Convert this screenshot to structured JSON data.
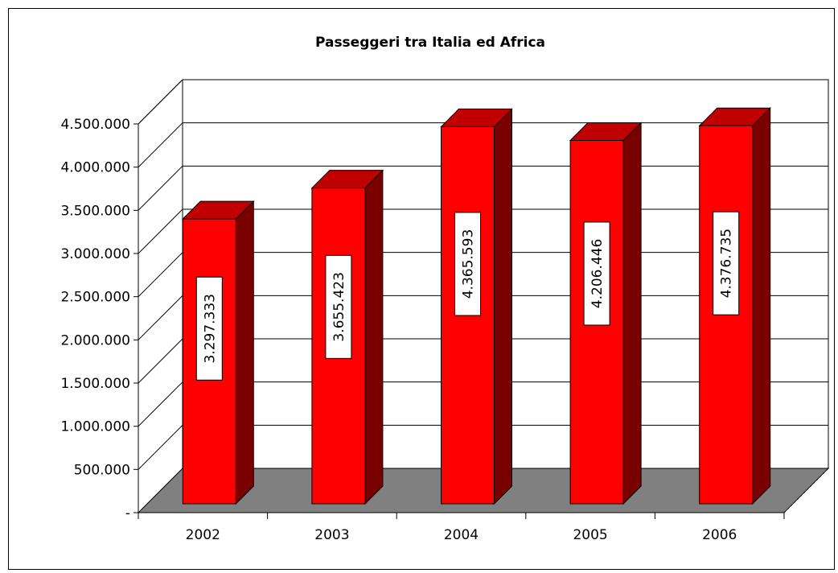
{
  "chart_data": {
    "type": "bar",
    "title": "Passeggeri tra Italia ed Africa",
    "xlabel": "",
    "ylabel": "",
    "categories": [
      "2002",
      "2003",
      "2004",
      "2005",
      "2006"
    ],
    "values": [
      3297333,
      3655423,
      4365593,
      4206446,
      4376735
    ],
    "data_labels": [
      "3.297.333",
      "3.655.423",
      "4.365.593",
      "4.206.446",
      "4.376.735"
    ],
    "ylim": [
      0,
      4500000
    ],
    "yticks": [
      0,
      500000,
      1000000,
      1500000,
      2000000,
      2500000,
      3000000,
      3500000,
      4000000,
      4500000
    ],
    "ytick_labels": [
      "-",
      "500.000",
      "1.000.000",
      "1.500.000",
      "2.000.000",
      "2.500.000",
      "3.000.000",
      "3.500.000",
      "4.000.000",
      "4.500.000"
    ],
    "grid": true,
    "legend": "none",
    "colors": {
      "bar_front": "#ff0000",
      "bar_top": "#c00000",
      "bar_side": "#7a0000",
      "floor": "#808080",
      "wall": "#ffffff",
      "grid": "#000000"
    }
  }
}
